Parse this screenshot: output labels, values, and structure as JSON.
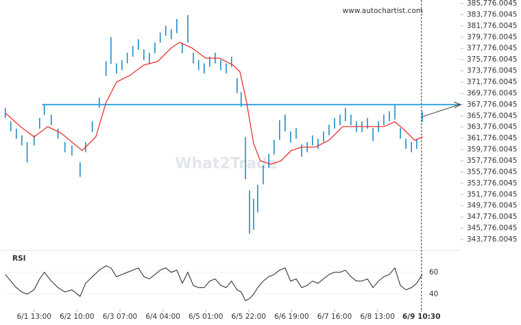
{
  "chart_data": {
    "type": "ohlc",
    "source": "www.autochartist.com",
    "watermark": "What2Trade",
    "color": "#1a8cc4",
    "x": [
      -14.1,
      -11.4,
      -8.7,
      -6.0,
      -3.4,
      0,
      2.7,
      5.0,
      8.4,
      11.7,
      15.1,
      18.5,
      22.5,
      25.2,
      28.5,
      31.9,
      35.2,
      37.6,
      40.3,
      43.0,
      45.6,
      48.3,
      51.0,
      53.7,
      56.4,
      59.1,
      61.7,
      64.4,
      67.1,
      69.8,
      72.5,
      75.2,
      77.9,
      80.5,
      83.2,
      85.9,
      88.6,
      91.3,
      94.0,
      96.6,
      99.3,
      101.3,
      103.4,
      105.4,
      107.4,
      109.4,
      112.1,
      114.8,
      117.4,
      120.1,
      122.8,
      125.5,
      128.2,
      130.9,
      133.6,
      136.2,
      138.9,
      141.6,
      144.3,
      147.0,
      149.7,
      152.3,
      155.0,
      157.7,
      160.4,
      163.1,
      165.8,
      168.5,
      171.1,
      173.8,
      176.5,
      179.2,
      181.9,
      184.6,
      187.2,
      189.9
    ],
    "high": [
      367200,
      364800,
      363500,
      362300,
      361100,
      362300,
      365400,
      367900,
      366000,
      363500,
      361100,
      360500,
      357500,
      361100,
      364800,
      369000,
      375500,
      379800,
      375100,
      375700,
      377000,
      378200,
      379400,
      377600,
      377000,
      378800,
      380600,
      381800,
      381200,
      383000,
      378800,
      383700,
      377000,
      375700,
      375100,
      376300,
      377000,
      375700,
      375100,
      376300,
      372500,
      370000,
      362000,
      352500,
      351000,
      353500,
      357000,
      359000,
      361500,
      365000,
      366000,
      363000,
      363600,
      360700,
      361100,
      362300,
      361700,
      363000,
      364200,
      365400,
      366000,
      367200,
      366000,
      364800,
      364800,
      365400,
      363600,
      364800,
      366000,
      366600,
      367900,
      363600,
      361700,
      361100,
      361700,
      366600
    ],
    "low": [
      365400,
      363000,
      361700,
      360500,
      357500,
      360500,
      363500,
      365900,
      364100,
      361700,
      359300,
      358700,
      354900,
      359300,
      362900,
      367200,
      372900,
      375000,
      373300,
      373900,
      375100,
      376300,
      377500,
      375700,
      375100,
      376900,
      378800,
      380000,
      379400,
      380500,
      376900,
      378800,
      375100,
      373900,
      373300,
      374500,
      375100,
      373900,
      373300,
      374500,
      369800,
      367400,
      354500,
      344800,
      345500,
      348600,
      353600,
      356500,
      358900,
      361500,
      363000,
      361000,
      361700,
      358500,
      359300,
      360500,
      359900,
      361100,
      362300,
      363500,
      364100,
      364800,
      364100,
      362900,
      362900,
      363500,
      361300,
      362900,
      364100,
      364800,
      365100,
      361700,
      359900,
      359300,
      359900,
      364700
    ],
    "ma": {
      "color": "#e8312f",
      "x": [
        -14.1,
        -6.7,
        0,
        6.7,
        13.4,
        23.5,
        30.2,
        35.2,
        40.3,
        47.0,
        53.7,
        60.4,
        67.1,
        71.1,
        77.2,
        83.9,
        90.6,
        97.3,
        100.7,
        104.0,
        107.4,
        110.7,
        115.8,
        120.8,
        125.8,
        130.9,
        137.6,
        144.3,
        151.0,
        157.7,
        164.4,
        171.1,
        176.5,
        181.2,
        186.2,
        190.3
      ],
      "values": [
        366298,
        363863,
        362037,
        363863,
        362645,
        359602,
        362037,
        368124,
        371776,
        372993,
        374819,
        375428,
        377863,
        378837,
        377863,
        376037,
        376037,
        374819,
        373602,
        368124,
        360819,
        357776,
        357167,
        357776,
        359602,
        360211,
        360211,
        361428,
        363863,
        363863,
        363863,
        363863,
        364715,
        363254,
        361428,
        362037
      ]
    },
    "resistance": {
      "value": 367776.0045,
      "start": 4,
      "color": "#33a6dc"
    },
    "xlim": [
      -14,
      208.7
    ],
    "ylim": [
      341950,
      386385
    ],
    "xticks": [
      {
        "value": 0,
        "label": "6/1 13:00"
      },
      {
        "value": 21,
        "label": "6/2 10:00"
      },
      {
        "value": 42,
        "label": "6/3 07:00"
      },
      {
        "value": 63,
        "label": "6/4 04:00"
      },
      {
        "value": 84,
        "label": "6/5 01:00"
      },
      {
        "value": 105,
        "label": "6/5 22:00"
      },
      {
        "value": 126,
        "label": "6/6 19:00"
      },
      {
        "value": 147,
        "label": "6/7 16:00"
      },
      {
        "value": 168,
        "label": "6/8 13:00"
      },
      {
        "value": 189.5,
        "label": "6/9 10:30"
      }
    ],
    "yticks": [
      {
        "value": 385776.0045,
        "label": "385,776.0045"
      },
      {
        "value": 383776.0045,
        "label": "383,776.0045"
      },
      {
        "value": 381776.0045,
        "label": "381,776.0045"
      },
      {
        "value": 379776.0045,
        "label": "379,776.0045"
      },
      {
        "value": 377776.0045,
        "label": "377,776.0045"
      },
      {
        "value": 375776.0045,
        "label": "375,776.0045"
      },
      {
        "value": 373776.0045,
        "label": "373,776.0045"
      },
      {
        "value": 371776.0045,
        "label": "371,776.0045"
      },
      {
        "value": 369776.0045,
        "label": "369,776.0045"
      },
      {
        "value": 367776.0045,
        "label": "367,776.0045"
      },
      {
        "value": 365776.0045,
        "label": "365,776.0045"
      },
      {
        "value": 363776.0045,
        "label": "363,776.0045"
      },
      {
        "value": 361776.0045,
        "label": "361,776.0045"
      },
      {
        "value": 359776.0045,
        "label": "359,776.0045"
      },
      {
        "value": 357776.0045,
        "label": "357,776.0045"
      },
      {
        "value": 355776.0045,
        "label": "355,776.0045"
      },
      {
        "value": 353776.0045,
        "label": "353,776.0045"
      },
      {
        "value": 351776.0045,
        "label": "351,776.0045"
      },
      {
        "value": 349776.0045,
        "label": "349,776.0045"
      },
      {
        "value": 347776.0045,
        "label": "347,776.0045"
      },
      {
        "value": 345776.0045,
        "label": "345,776.0045"
      },
      {
        "value": 343776.0045,
        "label": "343,776.0045"
      }
    ],
    "rsi": {
      "name": "RSI",
      "color": "#222",
      "values": [
        58,
        52,
        46,
        42,
        40,
        44,
        54,
        60,
        52,
        46,
        42,
        44,
        38,
        50,
        56,
        62,
        66,
        64,
        56,
        58,
        60,
        62,
        64,
        56,
        54,
        58,
        62,
        64,
        60,
        62,
        50,
        60,
        48,
        46,
        46,
        52,
        54,
        48,
        46,
        52,
        44,
        42,
        34,
        36,
        40,
        46,
        52,
        56,
        58,
        62,
        64,
        52,
        54,
        46,
        48,
        52,
        50,
        54,
        58,
        60,
        60,
        62,
        56,
        52,
        52,
        54,
        46,
        52,
        56,
        58,
        64,
        48,
        44,
        46,
        50,
        58
      ],
      "ylim": [
        27.5,
        71.25
      ],
      "yticks": [
        40,
        60
      ]
    }
  }
}
